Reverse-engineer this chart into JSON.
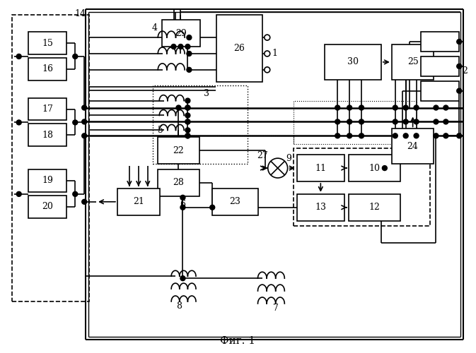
{
  "title": "Фиг. 1",
  "bg_color": "#ffffff",
  "lc": "#000000"
}
